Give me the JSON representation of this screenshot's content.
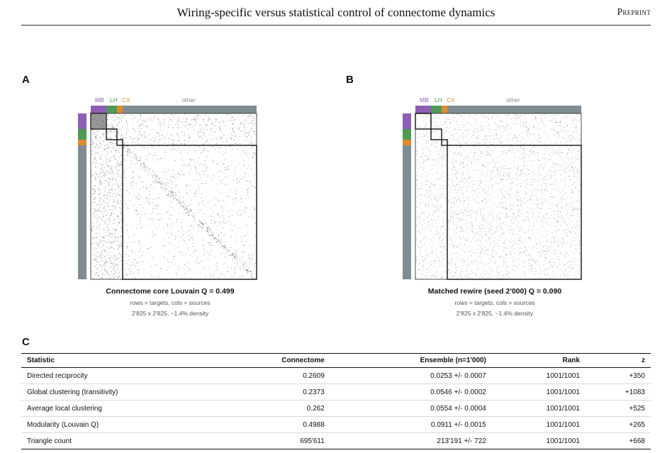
{
  "header": {
    "title": "Wiring-specific versus statistical control of connectome dynamics",
    "label": "Preprint"
  },
  "panels": [
    {
      "letter": "A",
      "groups": [
        "MB",
        "LH",
        "CX",
        "other"
      ],
      "caption_title": "Connectome core Louvain Q = 0.499",
      "caption_line1": "rows = targets, cols = sources",
      "caption_line2": "2'825 x 2'825, ~1.4% density"
    },
    {
      "letter": "B",
      "groups": [
        "MB",
        "LH",
        "CX",
        "other"
      ],
      "caption_title": "Matched rewire (seed 2'000) Q = 0.090",
      "caption_line1": "rows = targets, cols = sources",
      "caption_line2": "2'825 x 2'825, ~1.4% density"
    }
  ],
  "group_colors": {
    "MB": "#8c5fb5",
    "LH": "#4f9a55",
    "CX": "#e08a2e",
    "other": "#7f8c92"
  },
  "table": {
    "letter": "C",
    "headers": [
      "Statistic",
      "Connectome",
      "Ensemble (n=1'000)",
      "Rank",
      "z"
    ],
    "rows": [
      [
        "Directed reciprocity",
        "0.2609",
        "0.0253 +/- 0.0007",
        "1001/1001",
        "+350"
      ],
      [
        "Global clustering (transitivity)",
        "0.2373",
        "0.0546 +/- 0.0002",
        "1001/1001",
        "+1083"
      ],
      [
        "Average local clustering",
        "0.262",
        "0.0554 +/- 0.0004",
        "1001/1001",
        "+525"
      ],
      [
        "Modularity (Louvain Q)",
        "0.4988",
        "0.0911 +/- 0.0015",
        "1001/1001",
        "+265"
      ],
      [
        "Triangle count",
        "695'611",
        "213'191 +/- 722",
        "1001/1001",
        "+668"
      ]
    ]
  }
}
